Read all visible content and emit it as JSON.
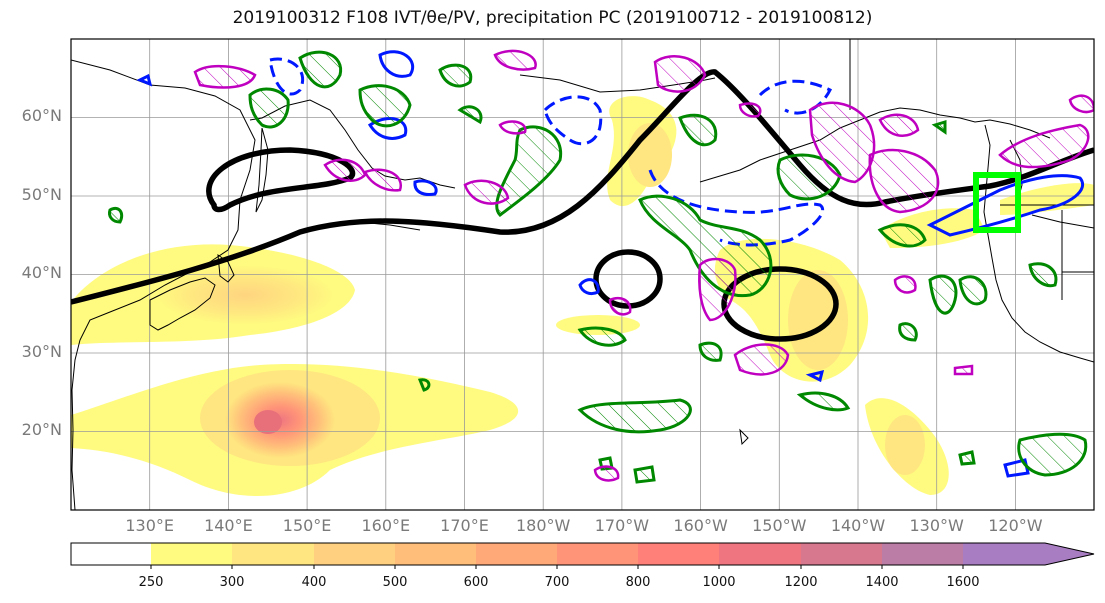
{
  "map": {
    "title": "2019100312 F108 IVT/θe/PV, precipitation PC (2019100712 - 2019100812)",
    "lat_ticks": [
      "60°N",
      "50°N",
      "40°N",
      "30°N",
      "20°N"
    ],
    "lon_ticks": [
      "130°E",
      "140°E",
      "150°E",
      "160°E",
      "170°E",
      "180°W",
      "170°W",
      "160°W",
      "150°W",
      "140°W",
      "130°W",
      "120°W"
    ],
    "extent": {
      "lon_min": 120,
      "lon_max": 250,
      "lat_min": 10,
      "lat_max": 70
    },
    "highlight_box": {
      "lon": [
        236,
        241
      ],
      "lat": [
        46,
        53
      ],
      "color": "#00ff00"
    }
  },
  "colorbar": {
    "labels": [
      "250",
      "300",
      "400",
      "500",
      "600",
      "700",
      "800",
      "1000",
      "1200",
      "1400",
      "1600"
    ],
    "colors": [
      "#ffffff",
      "#fffb80",
      "#ffe680",
      "#ffd080",
      "#ffbe7a",
      "#ffa878",
      "#ff9478",
      "#ff8078",
      "#ef7680",
      "#d7788f",
      "#bb7ca6",
      "#a97dc2",
      "#a97dc2"
    ]
  },
  "legend_colors": {
    "contour_black": "#000000",
    "contour_blue": "#0018ff",
    "contour_green": "#008800",
    "contour_magenta": "#c000c0"
  }
}
